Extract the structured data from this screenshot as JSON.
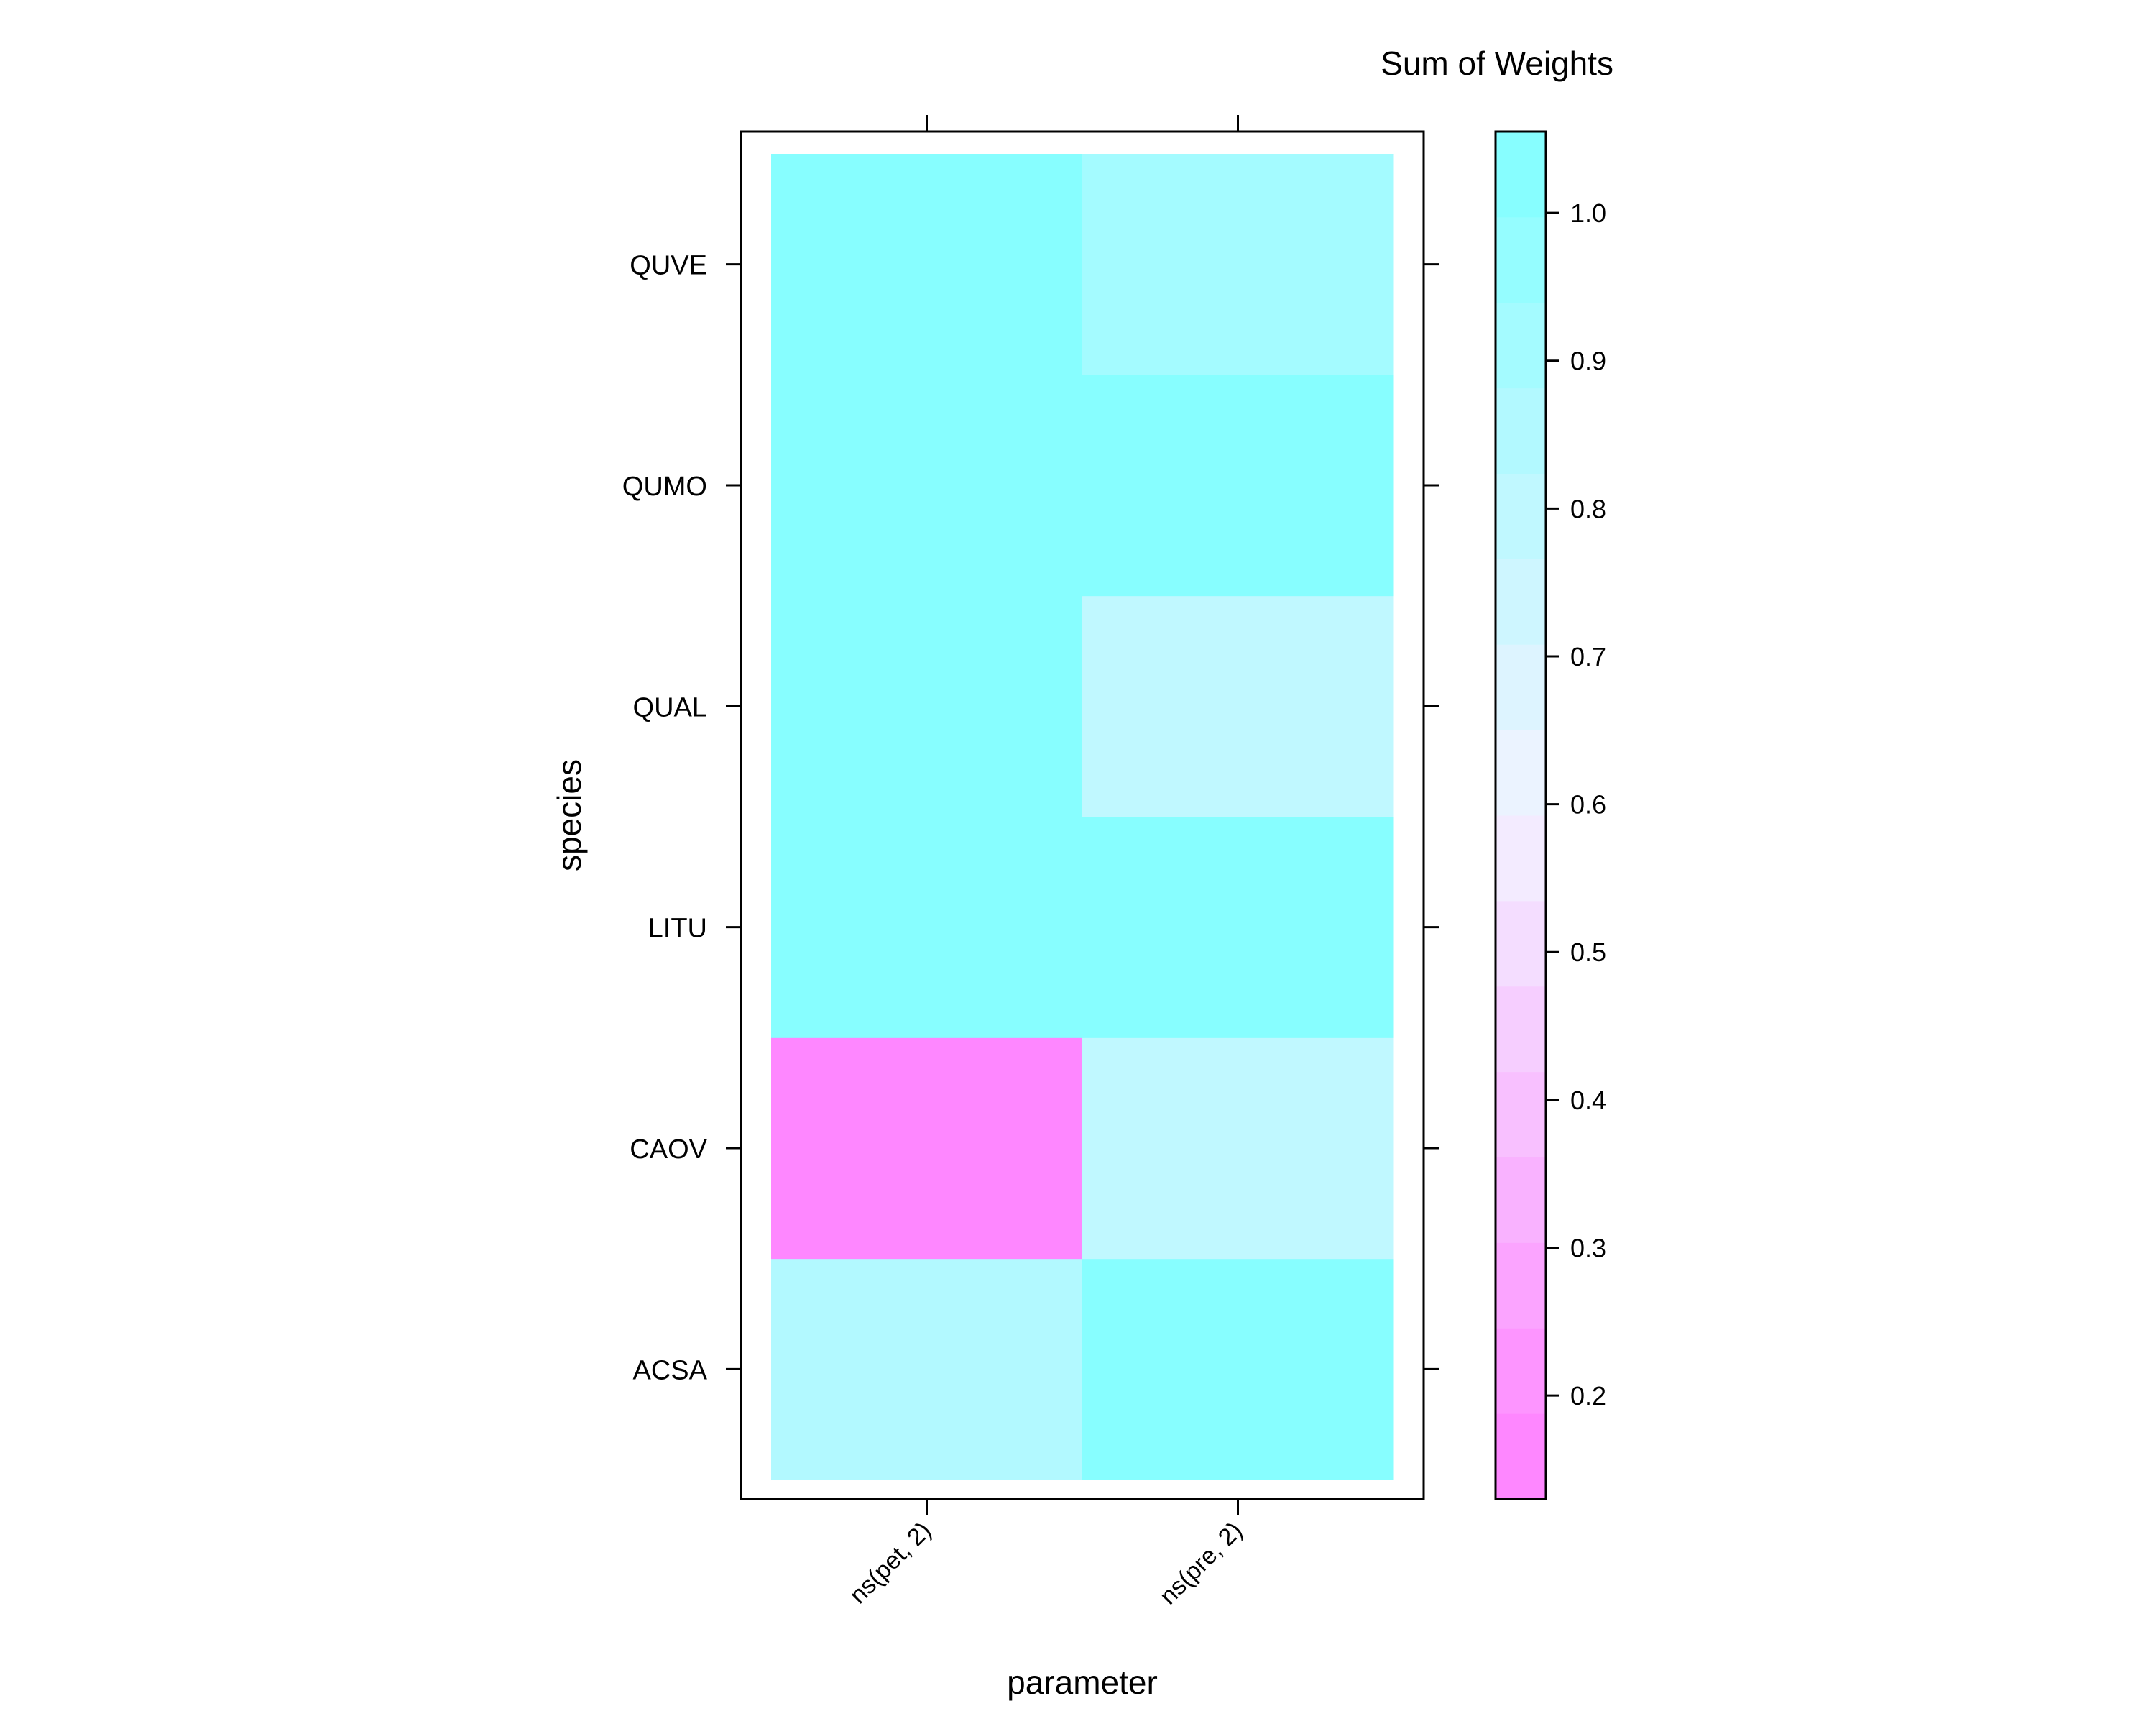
{
  "chart_data": {
    "type": "heatmap",
    "title": "",
    "xlabel": "parameter",
    "ylabel": "species",
    "x_categories": [
      "ns(pet, 2)",
      "ns(pre, 2)"
    ],
    "y_categories": [
      "ACSA",
      "CAOV",
      "LITU",
      "QUAL",
      "QUMO",
      "QUVE"
    ],
    "values": [
      [
        0.86,
        1.0
      ],
      [
        0.14,
        0.79
      ],
      [
        1.0,
        1.0
      ],
      [
        1.0,
        0.77
      ],
      [
        1.0,
        1.0
      ],
      [
        1.0,
        0.93
      ]
    ],
    "values_layout": "rows follow y_categories, columns follow x_categories",
    "colorkey": {
      "title": "Sum of Weights",
      "range": [
        0.13,
        1.055
      ],
      "ticks": [
        "0.2",
        "0.3",
        "0.4",
        "0.5",
        "0.6",
        "0.7",
        "0.8",
        "0.9",
        "1.0"
      ],
      "low_color": "#ff80ff",
      "high_color": "#80ffff",
      "mid_color": "#f2f2ff",
      "levels": 16
    },
    "grid": false,
    "legend_placement": "right"
  }
}
